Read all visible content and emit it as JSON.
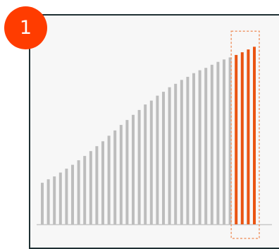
{
  "step_badge": {
    "number": "1",
    "color": "#ff3c00"
  },
  "colors": {
    "frame": "#1f3033",
    "bar_default": "#bdbdbd",
    "bar_highlight": "#ea5412",
    "highlight_box": "#ef9a6c",
    "baseline": "#c8c8c8",
    "plot_background": "#f7f7f7"
  },
  "chart_data": {
    "type": "bar",
    "title": "",
    "xlabel": "",
    "ylabel": "",
    "ylim": [
      0,
      100
    ],
    "grid": false,
    "legend": "none",
    "values": [
      20.3,
      22.0,
      23.4,
      25.3,
      27.2,
      29.1,
      31.3,
      33.4,
      35.8,
      38.2,
      40.6,
      43.3,
      45.9,
      48.6,
      51.0,
      53.5,
      55.9,
      58.6,
      60.5,
      62.9,
      64.8,
      67.0,
      68.7,
      70.6,
      72.1,
      73.9,
      75.3,
      76.5,
      78.0,
      79.4,
      80.6,
      81.6,
      82.8,
      84.1,
      85.5,
      86.8
    ],
    "highlighted_indices": [
      32,
      33,
      34,
      35
    ]
  }
}
